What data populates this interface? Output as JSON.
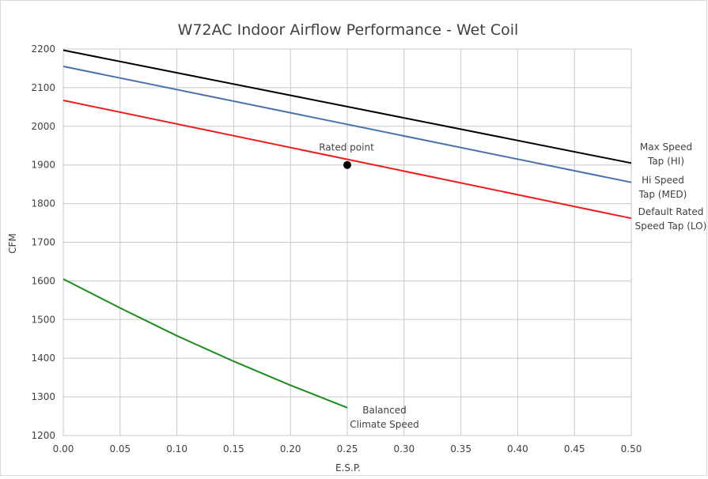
{
  "chart_data": {
    "type": "line",
    "title": "W72AC Indoor Airflow Performance - Wet Coil",
    "xlabel": "E.S.P.",
    "ylabel": "CFM",
    "xlim": [
      0,
      0.5
    ],
    "ylim": [
      1200,
      2200
    ],
    "x_ticks": [
      "0.00",
      "0.05",
      "0.10",
      "0.15",
      "0.20",
      "0.25",
      "0.30",
      "0.35",
      "0.40",
      "0.45",
      "0.50"
    ],
    "y_ticks": [
      "1200",
      "1300",
      "1400",
      "1500",
      "1600",
      "1700",
      "1800",
      "1900",
      "2000",
      "2100",
      "2200"
    ],
    "grid": true,
    "series": [
      {
        "name": "Max Speed Tap (HI)",
        "label_lines": [
          "Max Speed",
          "Tap (HI)"
        ],
        "color": "#000000",
        "x": [
          0.0,
          0.5
        ],
        "y": [
          2197,
          1905
        ]
      },
      {
        "name": "Hi Speed Tap (MED)",
        "label_lines": [
          "Hi Speed",
          "Tap (MED)"
        ],
        "color": "#4a72aa",
        "x": [
          0.0,
          0.5
        ],
        "y": [
          2155,
          1855
        ]
      },
      {
        "name": "Default Rated Speed Tap (LO)",
        "label_lines": [
          "Default Rated",
          "Speed Tap (LO)"
        ],
        "color": "#ee1c1c",
        "x": [
          0.0,
          0.5
        ],
        "y": [
          2067,
          1762
        ]
      },
      {
        "name": "Balanced Climate Speed",
        "label_lines": [
          "Balanced",
          "Climate Speed"
        ],
        "color": "#1e8b1e",
        "x": [
          0.0,
          0.05,
          0.1,
          0.15,
          0.2,
          0.25
        ],
        "y": [
          1605,
          1530,
          1458,
          1392,
          1330,
          1272
        ]
      }
    ],
    "annotations": [
      {
        "text": "Rated point",
        "x": 0.25,
        "y": 1900
      }
    ]
  }
}
